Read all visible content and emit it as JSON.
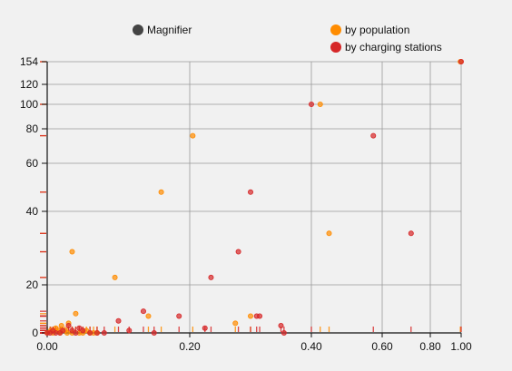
{
  "legend": [
    {
      "label": "Magnifier",
      "color": "#444444"
    },
    {
      "label": "by population",
      "color": "#ff8c00"
    },
    {
      "label": "by charging stations",
      "color": "#d62728"
    }
  ],
  "chart_data": {
    "type": "scatter",
    "x_ticks": [
      "0.00",
      "0.20",
      "0.40",
      "0.60",
      "0.80",
      "1.00"
    ],
    "x_tick_values": [
      0,
      0.2,
      0.4,
      0.6,
      0.8,
      1.0
    ],
    "y_ticks": [
      "0",
      "20",
      "40",
      "60",
      "80",
      "100",
      "120",
      "154"
    ],
    "y_tick_values": [
      0,
      20,
      40,
      60,
      80,
      100,
      120,
      154
    ],
    "xlim": [
      0,
      1
    ],
    "ylim": [
      0,
      154
    ],
    "grid": true,
    "legend_position": "top",
    "series": [
      {
        "name": "by population",
        "color": "#ff8c00",
        "points": [
          [
            0.0,
            0
          ],
          [
            0.005,
            1
          ],
          [
            0.008,
            0
          ],
          [
            0.012,
            2
          ],
          [
            0.015,
            1
          ],
          [
            0.018,
            0
          ],
          [
            0.02,
            3
          ],
          [
            0.025,
            1
          ],
          [
            0.028,
            0
          ],
          [
            0.03,
            4
          ],
          [
            0.035,
            0
          ],
          [
            0.04,
            8
          ],
          [
            0.045,
            0
          ],
          [
            0.05,
            0
          ],
          [
            0.055,
            1
          ],
          [
            0.06,
            0
          ],
          [
            0.065,
            0
          ],
          [
            0.07,
            0
          ],
          [
            0.035,
            29
          ],
          [
            0.095,
            22
          ],
          [
            0.142,
            7
          ],
          [
            0.16,
            48
          ],
          [
            0.205,
            76
          ],
          [
            0.275,
            4
          ],
          [
            0.3,
            7
          ],
          [
            0.425,
            100
          ],
          [
            0.45,
            34
          ],
          [
            0.995,
            154
          ]
        ]
      },
      {
        "name": "by charging stations",
        "color": "#d62728",
        "points": [
          [
            0.0,
            0
          ],
          [
            0.004,
            0
          ],
          [
            0.008,
            1
          ],
          [
            0.012,
            0
          ],
          [
            0.018,
            0
          ],
          [
            0.022,
            1
          ],
          [
            0.03,
            3
          ],
          [
            0.035,
            1
          ],
          [
            0.04,
            0
          ],
          [
            0.045,
            2
          ],
          [
            0.05,
            1
          ],
          [
            0.06,
            0
          ],
          [
            0.07,
            0
          ],
          [
            0.08,
            0
          ],
          [
            0.1,
            5
          ],
          [
            0.115,
            1
          ],
          [
            0.135,
            9
          ],
          [
            0.15,
            0
          ],
          [
            0.185,
            7
          ],
          [
            0.225,
            2
          ],
          [
            0.235,
            22
          ],
          [
            0.28,
            29
          ],
          [
            0.3,
            48
          ],
          [
            0.31,
            7
          ],
          [
            0.315,
            7
          ],
          [
            0.35,
            3
          ],
          [
            0.355,
            0
          ],
          [
            0.4,
            100
          ],
          [
            0.575,
            76
          ],
          [
            0.72,
            34
          ],
          [
            1.0,
            154
          ]
        ]
      }
    ]
  }
}
